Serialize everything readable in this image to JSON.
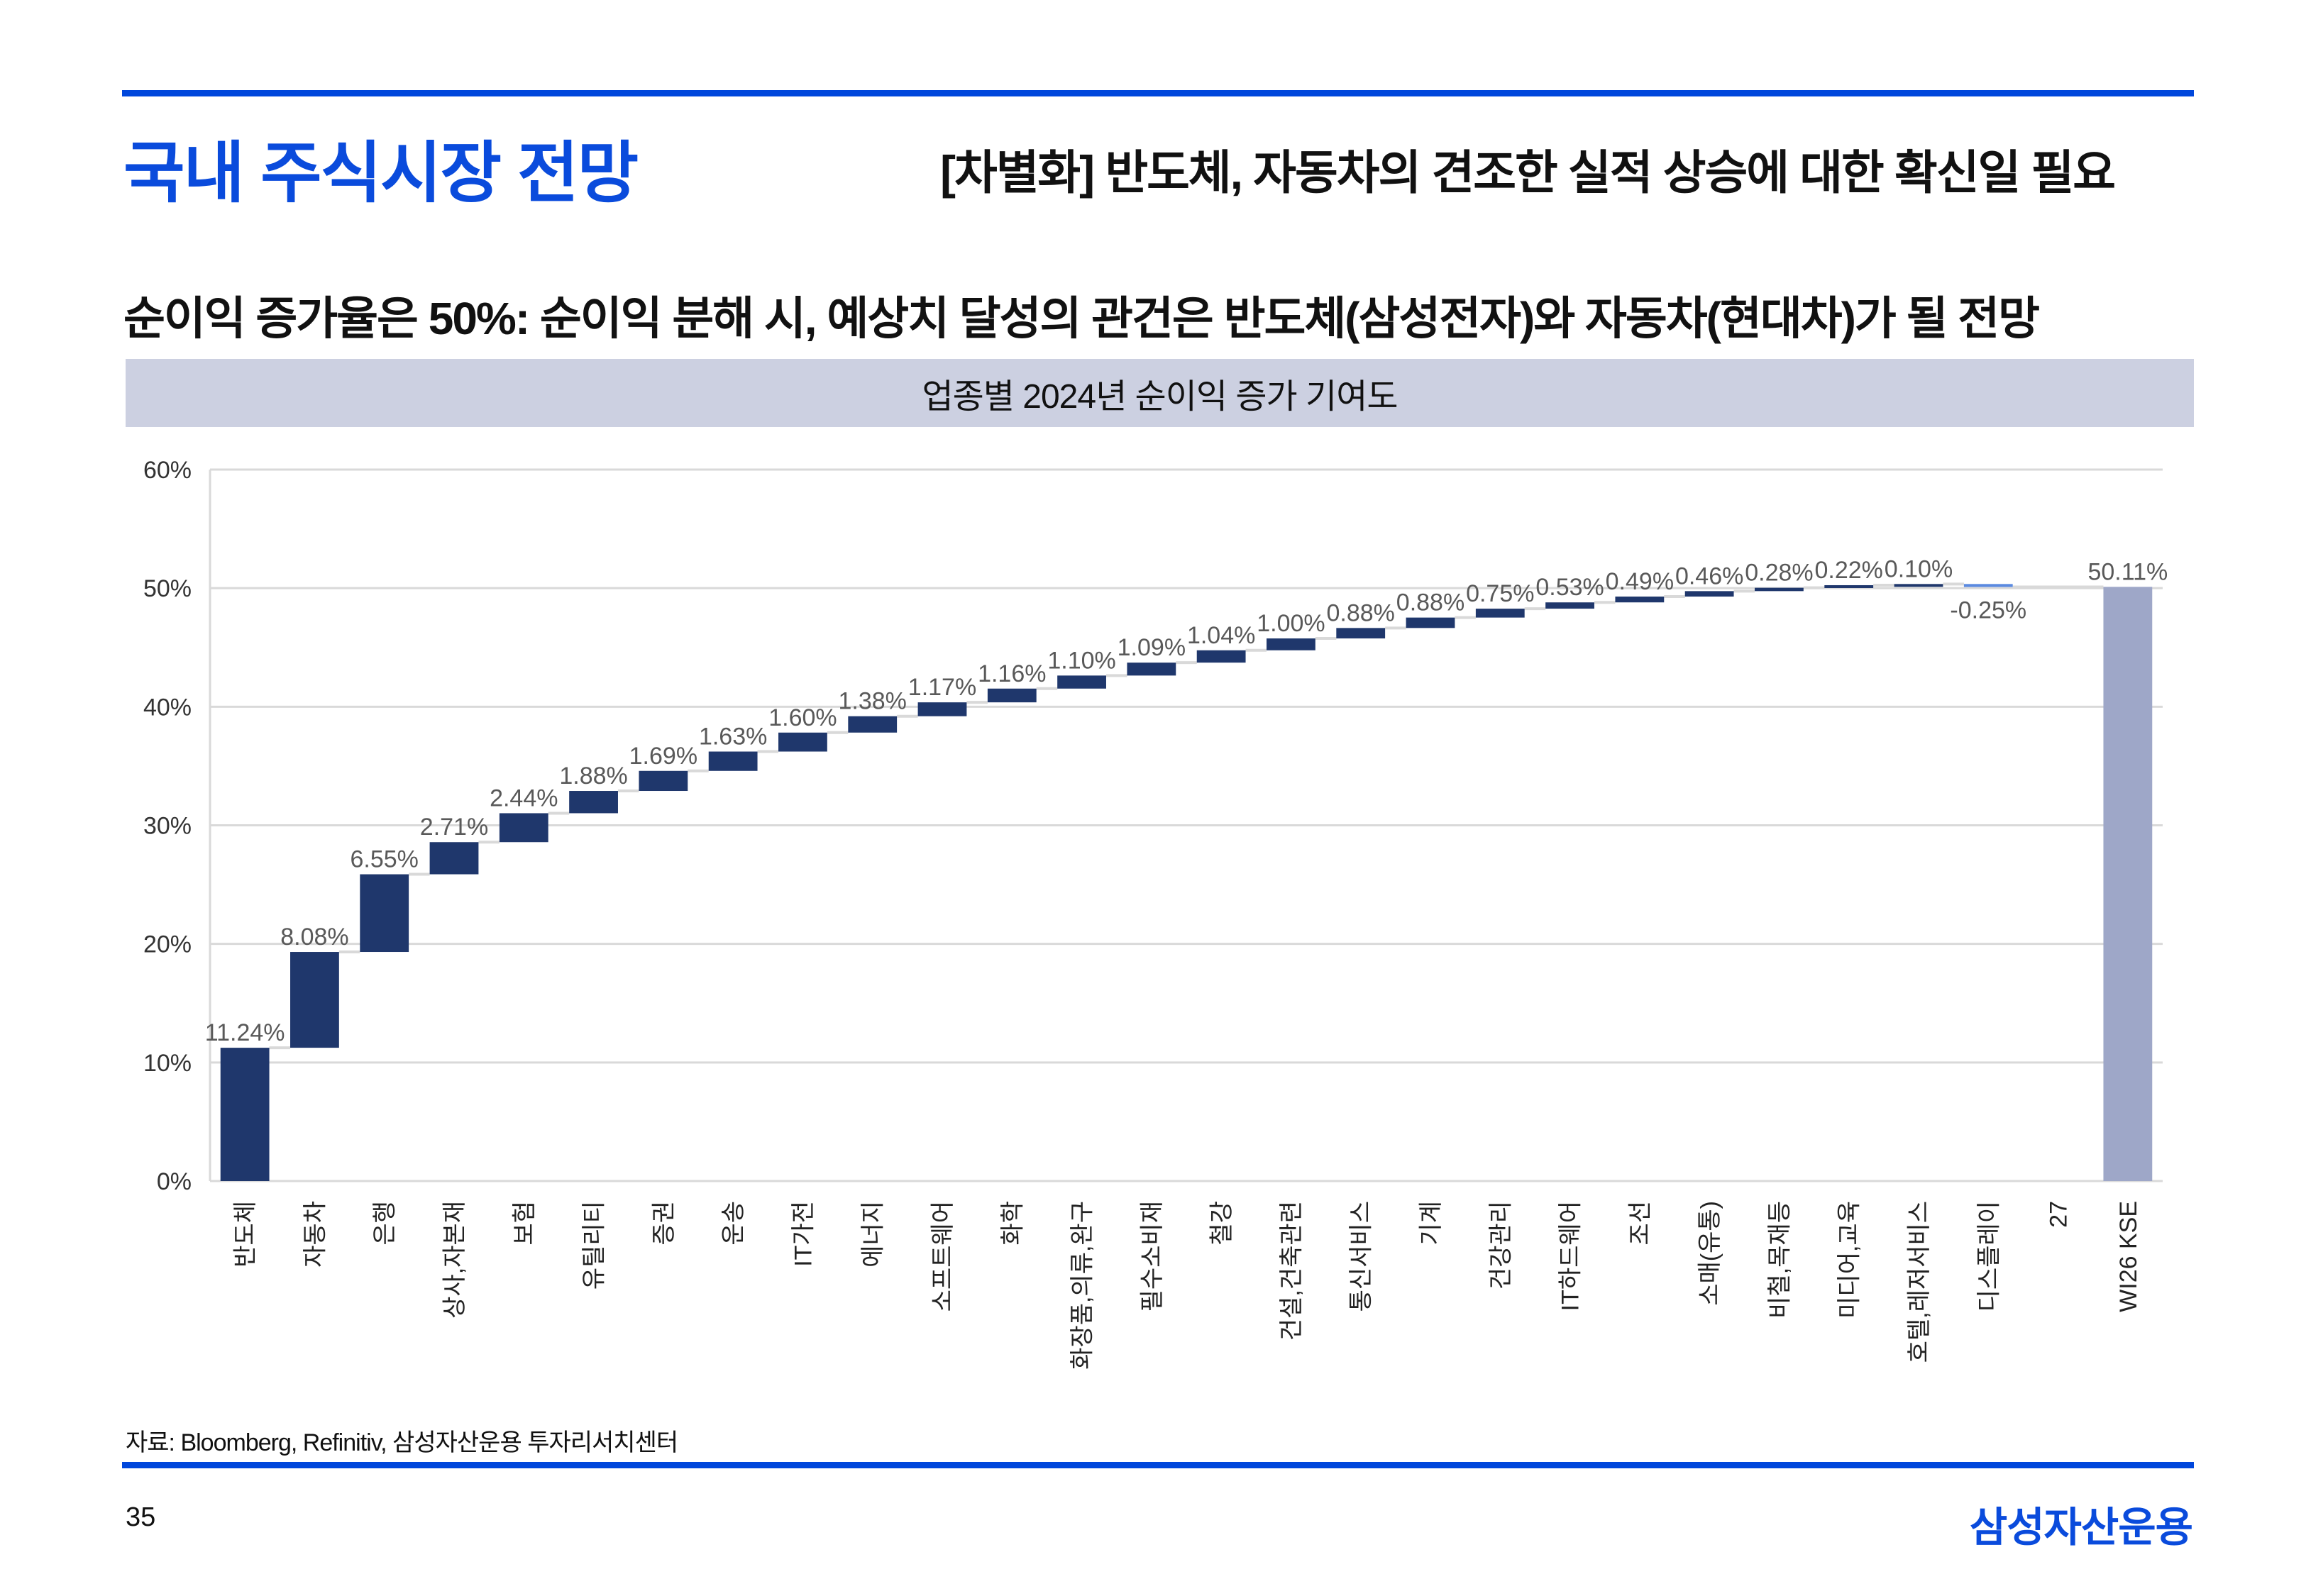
{
  "header": {
    "title": "국내 주식시장 전망",
    "subtitle": "[차별화] 반도체, 자동차의 견조한 실적 상승에 대한 확신일 필요"
  },
  "headline": "순이익 증가율은 50%: 순이익 분해 시, 예상치 달성의 관건은 반도체(삼성전자)와 자동차(현대차)가 될 전망",
  "chart_band": {
    "title": "업종별 2024년 순이익 증가 기여도"
  },
  "colors": {
    "brand_blue": "#0a4bdc",
    "rule_blue": "#0047dc",
    "band_bg": "#ccd0e1",
    "increase": "#1f376c",
    "decrease": "#5b8ae0",
    "total": "#9ea7c8",
    "grid": "#d9d9d9",
    "connector": "#d9d9d9"
  },
  "chart_data": {
    "type": "bar",
    "subtype": "waterfall",
    "title": "업종별 2024년 순이익 증가 기여도",
    "xlabel": "",
    "ylabel": "",
    "ylim": [
      0,
      60
    ],
    "yticks": [
      0,
      10,
      20,
      30,
      40,
      50,
      60
    ],
    "ytick_labels": [
      "0%",
      "10%",
      "20%",
      "30%",
      "40%",
      "50%",
      "60%"
    ],
    "grid": true,
    "legend": "none",
    "categories": [
      "반도체",
      "자동차",
      "은행",
      "상사,자본재",
      "보험",
      "유틸리티",
      "증권",
      "운송",
      "IT가전",
      "에너지",
      "소프트웨어",
      "화학",
      "화장품,의류,완구",
      "필수소비재",
      "철강",
      "건설,건축관련",
      "통신서비스",
      "기계",
      "건강관리",
      "IT하드웨어",
      "조선",
      "소매(유통)",
      "비철,목재등",
      "미디어,교육",
      "호텔,레저서비스",
      "디스플레이",
      "27",
      "WI26 KSE"
    ],
    "values": [
      11.24,
      8.08,
      6.55,
      2.71,
      2.44,
      1.88,
      1.69,
      1.63,
      1.6,
      1.38,
      1.17,
      1.16,
      1.1,
      1.09,
      1.04,
      1.0,
      0.88,
      0.88,
      0.75,
      0.53,
      0.49,
      0.46,
      0.28,
      0.22,
      0.1,
      -0.25,
      null,
      50.11
    ],
    "data_labels": [
      "11.24%",
      "8.08%",
      "6.55%",
      "2.71%",
      "2.44%",
      "1.88%",
      "1.69%",
      "1.63%",
      "1.60%",
      "1.38%",
      "1.17%",
      "1.16%",
      "1.10%",
      "1.09%",
      "1.04%",
      "1.00%",
      "0.88%",
      "0.88%",
      "0.75%",
      "0.53%",
      "0.49%",
      "0.46%",
      "0.28%",
      "0.22%",
      "0.10%",
      "-0.25%",
      "",
      "50.11%"
    ],
    "kinds": [
      "increase",
      "increase",
      "increase",
      "increase",
      "increase",
      "increase",
      "increase",
      "increase",
      "increase",
      "increase",
      "increase",
      "increase",
      "increase",
      "increase",
      "increase",
      "increase",
      "increase",
      "increase",
      "increase",
      "increase",
      "increase",
      "increase",
      "increase",
      "increase",
      "increase",
      "decrease",
      "empty",
      "total"
    ]
  },
  "footer": {
    "source": "자료: Bloomberg, Refinitiv, 삼성자산운용 투자리서치센터",
    "page_number": "35",
    "brand": "삼성자산운용"
  }
}
